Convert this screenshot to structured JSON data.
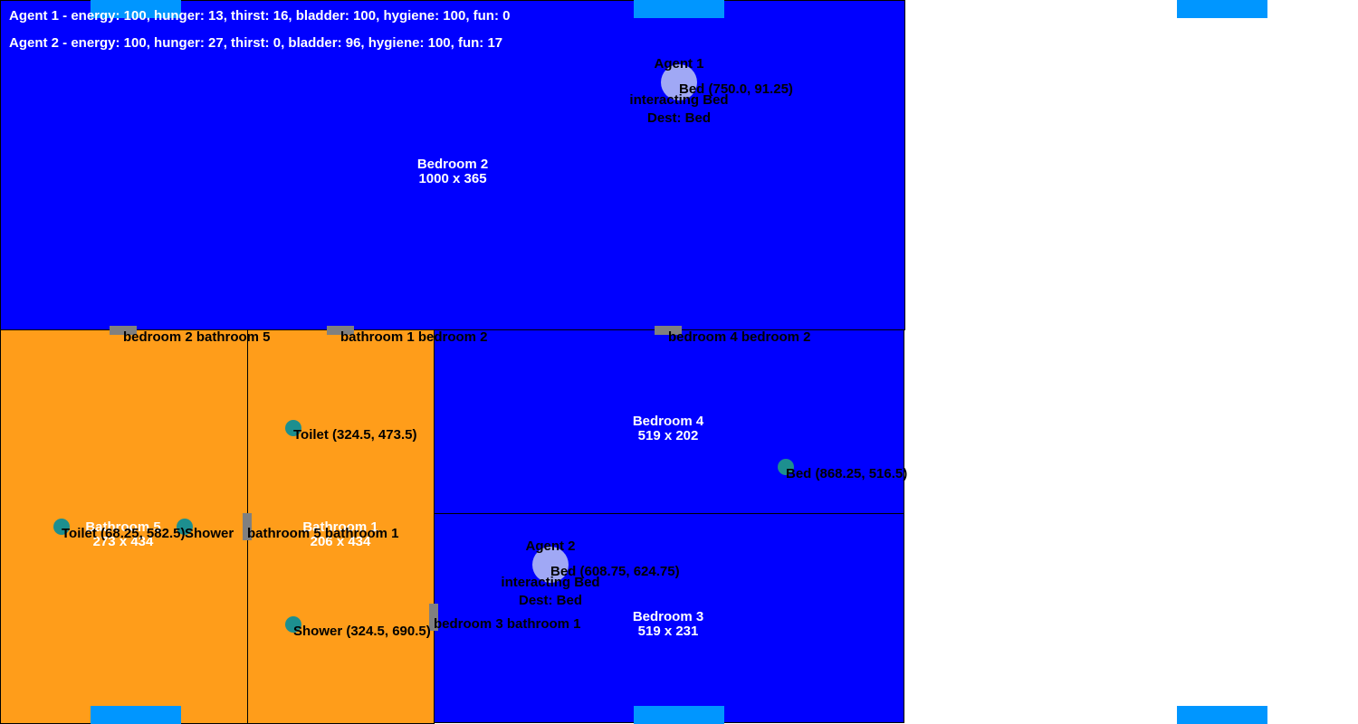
{
  "hud": {
    "agent1_status": "Agent 1 - energy: 100, hunger: 13, thirst: 16, bladder: 100, hygiene: 100, fun: 0",
    "agent2_status": "Agent 2 - energy: 100, hunger: 27, thirst: 0, bladder: 96, hygiene: 100, fun: 17"
  },
  "rooms": {
    "bedroom2": {
      "name": "Bedroom 2",
      "size": "1000 x 365"
    },
    "bedroom4": {
      "name": "Bedroom 4",
      "size": "519 x 202"
    },
    "bedroom3": {
      "name": "Bedroom 3",
      "size": "519 x 231"
    },
    "bathroom5": {
      "name": "Bathroom 5",
      "size": "273 x 434"
    },
    "bathroom1": {
      "name": "Bathroom 1",
      "size": "206 x 434"
    }
  },
  "doors": {
    "d1": "bedroom 2 bathroom 5",
    "d2": "bathroom 1 bedroom 2",
    "d3": "bedroom 4 bedroom 2",
    "d4": "bathroom 5 bathroom 1",
    "d5": "bedroom 3 bathroom 1"
  },
  "objects": {
    "toilet_b1": "Toilet (324.5, 473.5)",
    "shower_b1": "Shower (324.5, 690.5)",
    "bed_b4": "Bed (868.25, 516.5)",
    "toilet_b5": "Toilet (68.25, 582.5)",
    "shower_b5": "Shower",
    "bed_b2": "Bed (750.0, 91.25)",
    "bed_b3": "Bed (608.75, 624.75)"
  },
  "agents": {
    "agent1": {
      "name": "Agent 1",
      "action": "interacting Bed",
      "dest": "Dest: Bed"
    },
    "agent2": {
      "name": "Agent 2",
      "action": "interacting Bed",
      "dest": "Dest: Bed"
    }
  },
  "colors": {
    "bedroom": "#0000ff",
    "bathroom": "#ff9d1a",
    "window": "#0096ff",
    "door": "#808080",
    "object": "#1d8f8f",
    "agent": "#a0a8f5"
  }
}
